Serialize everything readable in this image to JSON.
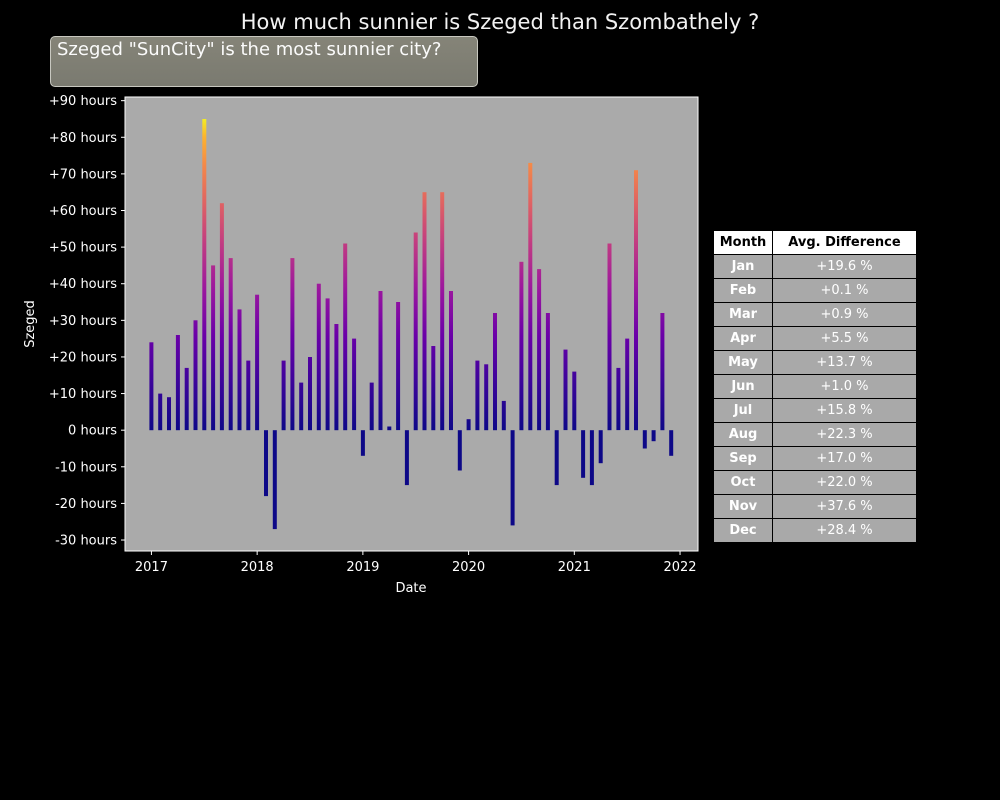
{
  "title": "How much sunnier is Szeged than Szombathely ?",
  "annotation": "Szeged \"SunCity\" is the most sunnier city?",
  "table": {
    "headers": [
      "Month",
      "Avg. Difference"
    ],
    "rows": [
      [
        "Jan",
        "+19.6 %"
      ],
      [
        "Feb",
        "+0.1 %"
      ],
      [
        "Mar",
        "+0.9 %"
      ],
      [
        "Apr",
        "+5.5 %"
      ],
      [
        "May",
        "+13.7 %"
      ],
      [
        "Jun",
        "+1.0 %"
      ],
      [
        "Jul",
        "+15.8 %"
      ],
      [
        "Aug",
        "+22.3 %"
      ],
      [
        "Sep",
        "+17.0 %"
      ],
      [
        "Oct",
        "+22.0 %"
      ],
      [
        "Nov",
        "+37.6 %"
      ],
      [
        "Dec",
        "+28.4 %"
      ]
    ]
  },
  "colors": {
    "background": "#000000",
    "plot_background": "#aaaaaa",
    "colormap": "plasma"
  },
  "chart_data": {
    "type": "bar",
    "title": "How much sunnier is Szeged than Szombathely ?",
    "xlabel": "Date",
    "ylabel": "Szeged",
    "x": [
      "2017-01",
      "2017-02",
      "2017-03",
      "2017-04",
      "2017-05",
      "2017-06",
      "2017-07",
      "2017-08",
      "2017-09",
      "2017-10",
      "2017-11",
      "2017-12",
      "2018-01",
      "2018-02",
      "2018-03",
      "2018-04",
      "2018-05",
      "2018-06",
      "2018-07",
      "2018-08",
      "2018-09",
      "2018-10",
      "2018-11",
      "2018-12",
      "2019-01",
      "2019-02",
      "2019-03",
      "2019-04",
      "2019-05",
      "2019-06",
      "2019-07",
      "2019-08",
      "2019-09",
      "2019-10",
      "2019-11",
      "2019-12",
      "2020-01",
      "2020-02",
      "2020-03",
      "2020-04",
      "2020-05",
      "2020-06",
      "2020-07",
      "2020-08",
      "2020-09",
      "2020-10",
      "2020-11",
      "2020-12",
      "2021-01",
      "2021-02",
      "2021-03",
      "2021-04",
      "2021-05",
      "2021-06",
      "2021-07",
      "2021-08",
      "2021-09",
      "2021-10",
      "2021-11",
      "2021-12"
    ],
    "values": [
      24,
      10,
      9,
      26,
      17,
      30,
      85,
      45,
      62,
      47,
      33,
      19,
      37,
      -18,
      -27,
      19,
      47,
      13,
      20,
      40,
      36,
      29,
      51,
      25,
      -7,
      13,
      38,
      1,
      35,
      -15,
      54,
      65,
      23,
      65,
      38,
      -11,
      3,
      19,
      18,
      32,
      8,
      -26,
      46,
      73,
      44,
      32,
      -15,
      22,
      16,
      -13,
      -15,
      -9,
      51,
      17,
      25,
      71,
      -5,
      -3,
      32,
      -7
    ],
    "ylim": [
      -33,
      91
    ],
    "xlim": [
      2016.75,
      2022.17
    ],
    "yticks": [
      -30,
      -20,
      -10,
      0,
      10,
      20,
      30,
      40,
      50,
      60,
      70,
      80,
      90
    ],
    "ytick_labels": [
      "-30 hours",
      "-20 hours",
      "-10 hours",
      "0 hours",
      "+10 hours",
      "+20 hours",
      "+30 hours",
      "+40 hours",
      "+50 hours",
      "+60 hours",
      "+70 hours",
      "+80 hours",
      "+90 hours"
    ],
    "xticks": [
      2017,
      2018,
      2019,
      2020,
      2021,
      2022
    ],
    "xtick_labels": [
      "2017",
      "2018",
      "2019",
      "2020",
      "2021",
      "2022"
    ],
    "grid": false
  }
}
